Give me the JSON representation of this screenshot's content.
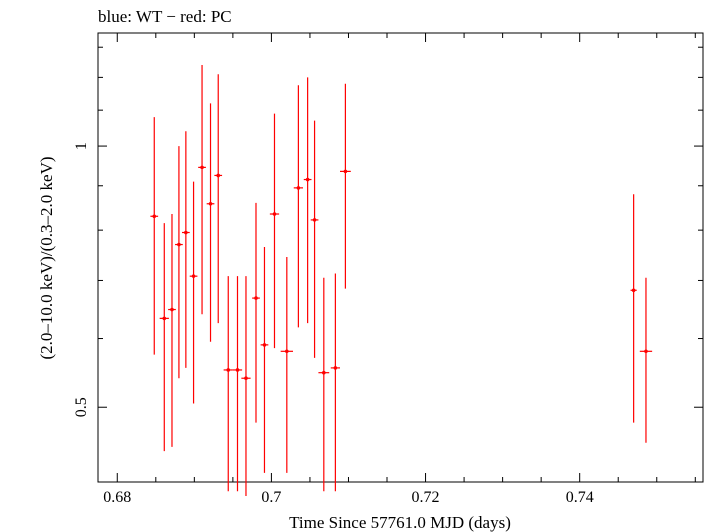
{
  "chart_data": {
    "type": "scatter",
    "title": "blue: WT − red: PC",
    "xlabel": "Time Since 57761.0 MJD (days)",
    "ylabel": "(2.0–10.0 keV)/(0.3–2.0 keV)",
    "x_scale": "linear",
    "y_scale": "log",
    "xlim": [
      0.6775,
      0.756
    ],
    "ylim": [
      0.41,
      1.35
    ],
    "x_ticks": [
      0.68,
      0.7,
      0.72,
      0.74
    ],
    "x_tick_labels": [
      "0.68",
      "0.7",
      "0.72",
      "0.74"
    ],
    "y_ticks": [
      0.5,
      1
    ],
    "y_tick_labels": [
      "0.5",
      "1"
    ],
    "grid": false,
    "series": [
      {
        "color": "#ff0000",
        "points": [
          {
            "x": 0.6848,
            "y": 0.83,
            "xerr": 0.0005,
            "ylo": 0.575,
            "yhi": 1.08
          },
          {
            "x": 0.6861,
            "y": 0.633,
            "xerr": 0.0006,
            "ylo": 0.445,
            "yhi": 0.815
          },
          {
            "x": 0.6871,
            "y": 0.648,
            "xerr": 0.0005,
            "ylo": 0.45,
            "yhi": 0.835
          },
          {
            "x": 0.688,
            "y": 0.77,
            "xerr": 0.0005,
            "ylo": 0.54,
            "yhi": 1.0
          },
          {
            "x": 0.6889,
            "y": 0.795,
            "xerr": 0.0005,
            "ylo": 0.555,
            "yhi": 1.04
          },
          {
            "x": 0.6899,
            "y": 0.708,
            "xerr": 0.0005,
            "ylo": 0.505,
            "yhi": 0.91
          },
          {
            "x": 0.691,
            "y": 0.945,
            "xerr": 0.0005,
            "ylo": 0.64,
            "yhi": 1.24
          },
          {
            "x": 0.6921,
            "y": 0.858,
            "xerr": 0.0005,
            "ylo": 0.595,
            "yhi": 1.12
          },
          {
            "x": 0.6931,
            "y": 0.925,
            "xerr": 0.0005,
            "ylo": 0.625,
            "yhi": 1.21
          },
          {
            "x": 0.6944,
            "y": 0.552,
            "xerr": 0.0006,
            "ylo": 0.4,
            "yhi": 0.708
          },
          {
            "x": 0.6956,
            "y": 0.552,
            "xerr": 0.0006,
            "ylo": 0.4,
            "yhi": 0.708
          },
          {
            "x": 0.6967,
            "y": 0.54,
            "xerr": 0.0006,
            "ylo": 0.395,
            "yhi": 0.708
          },
          {
            "x": 0.698,
            "y": 0.668,
            "xerr": 0.0005,
            "ylo": 0.48,
            "yhi": 0.86
          },
          {
            "x": 0.6991,
            "y": 0.59,
            "xerr": 0.0005,
            "ylo": 0.42,
            "yhi": 0.765
          },
          {
            "x": 0.7004,
            "y": 0.835,
            "xerr": 0.0006,
            "ylo": 0.585,
            "yhi": 1.09
          },
          {
            "x": 0.702,
            "y": 0.58,
            "xerr": 0.0008,
            "ylo": 0.42,
            "yhi": 0.745
          },
          {
            "x": 0.7035,
            "y": 0.895,
            "xerr": 0.0006,
            "ylo": 0.618,
            "yhi": 1.175
          },
          {
            "x": 0.7047,
            "y": 0.915,
            "xerr": 0.0005,
            "ylo": 0.625,
            "yhi": 1.2
          },
          {
            "x": 0.7056,
            "y": 0.822,
            "xerr": 0.0005,
            "ylo": 0.57,
            "yhi": 1.07
          },
          {
            "x": 0.7068,
            "y": 0.548,
            "xerr": 0.0007,
            "ylo": 0.4,
            "yhi": 0.705
          },
          {
            "x": 0.7083,
            "y": 0.555,
            "xerr": 0.0006,
            "ylo": 0.4,
            "yhi": 0.713
          },
          {
            "x": 0.7096,
            "y": 0.935,
            "xerr": 0.0007,
            "ylo": 0.685,
            "yhi": 1.18
          },
          {
            "x": 0.747,
            "y": 0.682,
            "xerr": 0.0004,
            "ylo": 0.48,
            "yhi": 0.88
          },
          {
            "x": 0.7486,
            "y": 0.58,
            "xerr": 0.0008,
            "ylo": 0.455,
            "yhi": 0.705
          }
        ]
      }
    ]
  }
}
